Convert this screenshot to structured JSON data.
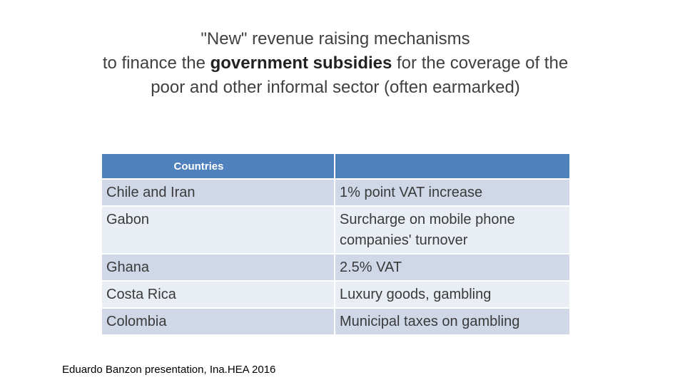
{
  "title": {
    "line1": "\"New\" revenue raising mechanisms",
    "line2_prefix": "to finance the ",
    "line2_bold": "government subsidies",
    "line2_suffix": " for the coverage of the",
    "line3": "poor and other informal sector (often earmarked)"
  },
  "table": {
    "headers": [
      "Countries",
      ""
    ],
    "rows": [
      {
        "country": "Chile and Iran",
        "mechanism": "1% point VAT increase"
      },
      {
        "country": "Gabon",
        "mechanism": "Surcharge on mobile phone companies' turnover"
      },
      {
        "country": "Ghana",
        "mechanism": "2.5% VAT"
      },
      {
        "country": "Costa Rica",
        "mechanism": "Luxury goods, gambling"
      },
      {
        "country": "Colombia",
        "mechanism": "Municipal taxes on gambling"
      }
    ]
  },
  "footer": "Eduardo Banzon presentation, Ina.HEA 2016",
  "colors": {
    "header_bg": "#4f81bd",
    "row_odd": "#d0d8e8",
    "row_even": "#e9edf4"
  }
}
